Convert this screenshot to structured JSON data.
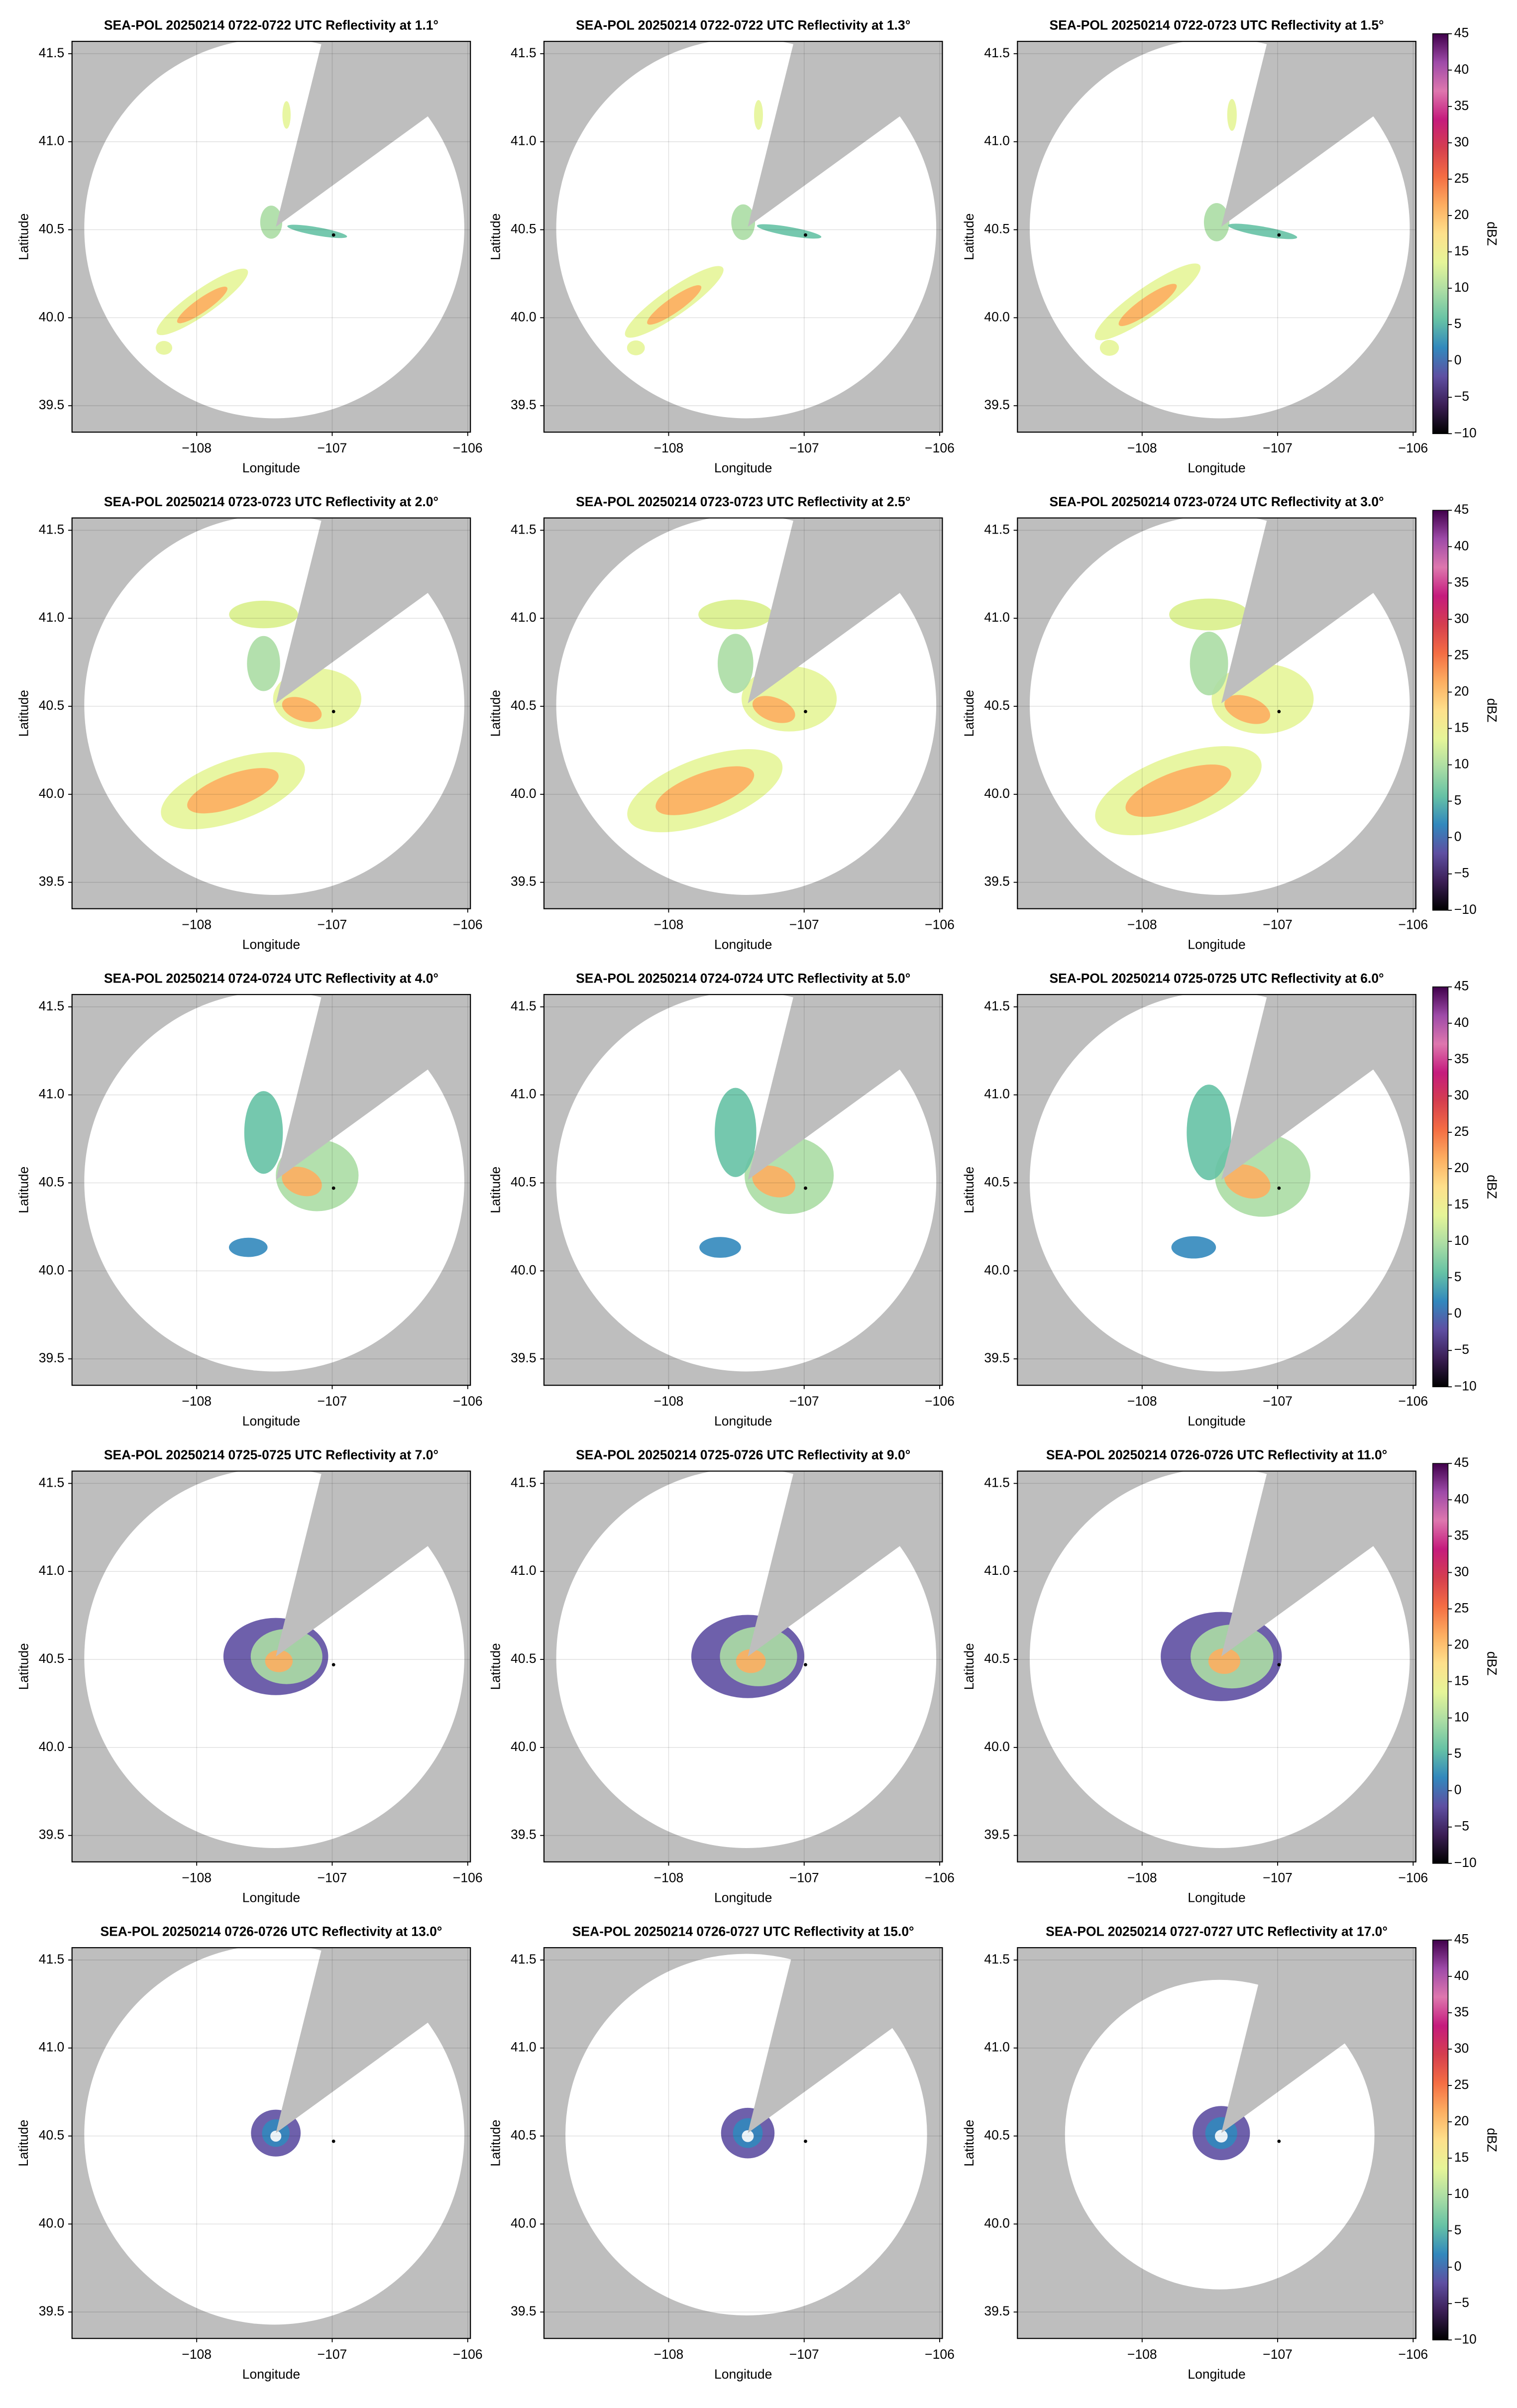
{
  "chart_data": [
    {
      "type": "map",
      "title": "SEA-POL 20250214 0722-0722 UTC Reflectivity at 1.1°",
      "xlabel": "Longitude",
      "ylabel": "Latitude",
      "xlim": [
        -108.92,
        -105.98
      ],
      "ylim": [
        39.35,
        41.57
      ],
      "xticks": [
        {
          "value": -108,
          "label": "−108"
        },
        {
          "value": -107,
          "label": "−107"
        },
        {
          "value": -106,
          "label": "−106"
        }
      ],
      "yticks": [
        39.5,
        {
          "value": 40,
          "label": "40.0"
        },
        40.5,
        {
          "value": 41,
          "label": "41.0"
        },
        41.5
      ],
      "grid": true,
      "x": [
        -106.99
      ],
      "y": [
        40.47
      ]
    },
    {
      "type": "map",
      "title": "SEA-POL 20250214 0722-0722 UTC Reflectivity at 1.3°",
      "xlabel": "Longitude",
      "ylabel": "Latitude",
      "xlim": [
        -108.92,
        -105.98
      ],
      "ylim": [
        39.35,
        41.57
      ],
      "xticks": [
        {
          "value": -108,
          "label": "−108"
        },
        {
          "value": -107,
          "label": "−107"
        },
        {
          "value": -106,
          "label": "−106"
        }
      ],
      "yticks": [
        39.5,
        {
          "value": 40,
          "label": "40.0"
        },
        40.5,
        {
          "value": 41,
          "label": "41.0"
        },
        41.5
      ],
      "grid": true,
      "x": [
        -106.99
      ],
      "y": [
        40.47
      ]
    },
    {
      "type": "map",
      "title": "SEA-POL 20250214 0722-0723 UTC Reflectivity at 1.5°",
      "xlabel": "Longitude",
      "ylabel": "Latitude",
      "xlim": [
        -108.92,
        -105.98
      ],
      "ylim": [
        39.35,
        41.57
      ],
      "xticks": [
        {
          "value": -108,
          "label": "−108"
        },
        {
          "value": -107,
          "label": "−107"
        },
        {
          "value": -106,
          "label": "−106"
        }
      ],
      "yticks": [
        39.5,
        {
          "value": 40,
          "label": "40.0"
        },
        40.5,
        {
          "value": 41,
          "label": "41.0"
        },
        41.5
      ],
      "grid": true,
      "x": [
        -106.99
      ],
      "y": [
        40.47
      ],
      "colorbar": {
        "label": "dBZ",
        "lim": [
          -10,
          45
        ],
        "ticks": [
          {
            "value": -10,
            "label": "−10"
          },
          {
            "value": -5,
            "label": "−5"
          },
          0,
          5,
          10,
          15,
          20,
          25,
          30,
          35,
          40,
          45
        ],
        "colormap": [
          "#000000",
          "#3b1e55",
          "#5e4fa2",
          "#3288bd",
          "#66c2a5",
          "#abdda4",
          "#e6f598",
          "#fee08b",
          "#fdae61",
          "#f46d43",
          "#d53e4f",
          "#c51b7d",
          "#de77ae",
          "#9e4aa8",
          "#40004b"
        ]
      }
    },
    {
      "type": "map",
      "title": "SEA-POL 20250214 0723-0723 UTC Reflectivity at 2.0°",
      "xlabel": "Longitude",
      "ylabel": "Latitude",
      "xlim": [
        -108.92,
        -105.98
      ],
      "ylim": [
        39.35,
        41.57
      ],
      "xticks": [
        {
          "value": -108,
          "label": "−108"
        },
        {
          "value": -107,
          "label": "−107"
        },
        {
          "value": -106,
          "label": "−106"
        }
      ],
      "yticks": [
        39.5,
        {
          "value": 40,
          "label": "40.0"
        },
        40.5,
        {
          "value": 41,
          "label": "41.0"
        },
        41.5
      ],
      "grid": true,
      "x": [
        -106.99
      ],
      "y": [
        40.47
      ]
    },
    {
      "type": "map",
      "title": "SEA-POL 20250214 0723-0723 UTC Reflectivity at 2.5°",
      "xlabel": "Longitude",
      "ylabel": "Latitude",
      "xlim": [
        -108.92,
        -105.98
      ],
      "ylim": [
        39.35,
        41.57
      ],
      "xticks": [
        {
          "value": -108,
          "label": "−108"
        },
        {
          "value": -107,
          "label": "−107"
        },
        {
          "value": -106,
          "label": "−106"
        }
      ],
      "yticks": [
        39.5,
        {
          "value": 40,
          "label": "40.0"
        },
        40.5,
        {
          "value": 41,
          "label": "41.0"
        },
        41.5
      ],
      "grid": true,
      "x": [
        -106.99
      ],
      "y": [
        40.47
      ]
    },
    {
      "type": "map",
      "title": "SEA-POL 20250214 0723-0724 UTC Reflectivity at 3.0°",
      "xlabel": "Longitude",
      "ylabel": "Latitude",
      "xlim": [
        -108.92,
        -105.98
      ],
      "ylim": [
        39.35,
        41.57
      ],
      "xticks": [
        {
          "value": -108,
          "label": "−108"
        },
        {
          "value": -107,
          "label": "−107"
        },
        {
          "value": -106,
          "label": "−106"
        }
      ],
      "yticks": [
        39.5,
        {
          "value": 40,
          "label": "40.0"
        },
        40.5,
        {
          "value": 41,
          "label": "41.0"
        },
        41.5
      ],
      "grid": true,
      "x": [
        -106.99
      ],
      "y": [
        40.47
      ],
      "colorbar": {
        "label": "dBZ",
        "lim": [
          -10,
          45
        ],
        "ticks": [
          {
            "value": -10,
            "label": "−10"
          },
          {
            "value": -5,
            "label": "−5"
          },
          0,
          5,
          10,
          15,
          20,
          25,
          30,
          35,
          40,
          45
        ],
        "colormap": [
          "#000000",
          "#3b1e55",
          "#5e4fa2",
          "#3288bd",
          "#66c2a5",
          "#abdda4",
          "#e6f598",
          "#fee08b",
          "#fdae61",
          "#f46d43",
          "#d53e4f",
          "#c51b7d",
          "#de77ae",
          "#9e4aa8",
          "#40004b"
        ]
      }
    },
    {
      "type": "map",
      "title": "SEA-POL 20250214 0724-0724 UTC Reflectivity at 4.0°",
      "xlabel": "Longitude",
      "ylabel": "Latitude",
      "xlim": [
        -108.92,
        -105.98
      ],
      "ylim": [
        39.35,
        41.57
      ],
      "xticks": [
        {
          "value": -108,
          "label": "−108"
        },
        {
          "value": -107,
          "label": "−107"
        },
        {
          "value": -106,
          "label": "−106"
        }
      ],
      "yticks": [
        39.5,
        {
          "value": 40,
          "label": "40.0"
        },
        40.5,
        {
          "value": 41,
          "label": "41.0"
        },
        41.5
      ],
      "grid": true,
      "x": [
        -106.99
      ],
      "y": [
        40.47
      ]
    },
    {
      "type": "map",
      "title": "SEA-POL 20250214 0724-0724 UTC Reflectivity at 5.0°",
      "xlabel": "Longitude",
      "ylabel": "Latitude",
      "xlim": [
        -108.92,
        -105.98
      ],
      "ylim": [
        39.35,
        41.57
      ],
      "xticks": [
        {
          "value": -108,
          "label": "−108"
        },
        {
          "value": -107,
          "label": "−107"
        },
        {
          "value": -106,
          "label": "−106"
        }
      ],
      "yticks": [
        39.5,
        {
          "value": 40,
          "label": "40.0"
        },
        40.5,
        {
          "value": 41,
          "label": "41.0"
        },
        41.5
      ],
      "grid": true,
      "x": [
        -106.99
      ],
      "y": [
        40.47
      ]
    },
    {
      "type": "map",
      "title": "SEA-POL 20250214 0725-0725 UTC Reflectivity at 6.0°",
      "xlabel": "Longitude",
      "ylabel": "Latitude",
      "xlim": [
        -108.92,
        -105.98
      ],
      "ylim": [
        39.35,
        41.57
      ],
      "xticks": [
        {
          "value": -108,
          "label": "−108"
        },
        {
          "value": -107,
          "label": "−107"
        },
        {
          "value": -106,
          "label": "−106"
        }
      ],
      "yticks": [
        39.5,
        {
          "value": 40,
          "label": "40.0"
        },
        40.5,
        {
          "value": 41,
          "label": "41.0"
        },
        41.5
      ],
      "grid": true,
      "x": [
        -106.99
      ],
      "y": [
        40.47
      ],
      "colorbar": {
        "label": "dBZ",
        "lim": [
          -10,
          45
        ],
        "ticks": [
          {
            "value": -10,
            "label": "−10"
          },
          {
            "value": -5,
            "label": "−5"
          },
          0,
          5,
          10,
          15,
          20,
          25,
          30,
          35,
          40,
          45
        ],
        "colormap": [
          "#000000",
          "#3b1e55",
          "#5e4fa2",
          "#3288bd",
          "#66c2a5",
          "#abdda4",
          "#e6f598",
          "#fee08b",
          "#fdae61",
          "#f46d43",
          "#d53e4f",
          "#c51b7d",
          "#de77ae",
          "#9e4aa8",
          "#40004b"
        ]
      }
    },
    {
      "type": "map",
      "title": "SEA-POL 20250214 0725-0725 UTC Reflectivity at 7.0°",
      "xlabel": "Longitude",
      "ylabel": "Latitude",
      "xlim": [
        -108.92,
        -105.98
      ],
      "ylim": [
        39.35,
        41.57
      ],
      "xticks": [
        {
          "value": -108,
          "label": "−108"
        },
        {
          "value": -107,
          "label": "−107"
        },
        {
          "value": -106,
          "label": "−106"
        }
      ],
      "yticks": [
        39.5,
        {
          "value": 40,
          "label": "40.0"
        },
        40.5,
        {
          "value": 41,
          "label": "41.0"
        },
        41.5
      ],
      "grid": true,
      "x": [
        -106.99
      ],
      "y": [
        40.47
      ]
    },
    {
      "type": "map",
      "title": "SEA-POL 20250214 0725-0726 UTC Reflectivity at 9.0°",
      "xlabel": "Longitude",
      "ylabel": "Latitude",
      "xlim": [
        -108.92,
        -105.98
      ],
      "ylim": [
        39.35,
        41.57
      ],
      "xticks": [
        {
          "value": -108,
          "label": "−108"
        },
        {
          "value": -107,
          "label": "−107"
        },
        {
          "value": -106,
          "label": "−106"
        }
      ],
      "yticks": [
        39.5,
        {
          "value": 40,
          "label": "40.0"
        },
        40.5,
        {
          "value": 41,
          "label": "41.0"
        },
        41.5
      ],
      "grid": true,
      "x": [
        -106.99
      ],
      "y": [
        40.47
      ]
    },
    {
      "type": "map",
      "title": "SEA-POL 20250214 0726-0726 UTC Reflectivity at 11.0°",
      "xlabel": "Longitude",
      "ylabel": "Latitude",
      "xlim": [
        -108.92,
        -105.98
      ],
      "ylim": [
        39.35,
        41.57
      ],
      "xticks": [
        {
          "value": -108,
          "label": "−108"
        },
        {
          "value": -107,
          "label": "−107"
        },
        {
          "value": -106,
          "label": "−106"
        }
      ],
      "yticks": [
        39.5,
        {
          "value": 40,
          "label": "40.0"
        },
        40.5,
        {
          "value": 41,
          "label": "41.0"
        },
        41.5
      ],
      "grid": true,
      "x": [
        -106.99
      ],
      "y": [
        40.47
      ],
      "colorbar": {
        "label": "dBZ",
        "lim": [
          -10,
          45
        ],
        "ticks": [
          {
            "value": -10,
            "label": "−10"
          },
          {
            "value": -5,
            "label": "−5"
          },
          0,
          5,
          10,
          15,
          20,
          25,
          30,
          35,
          40,
          45
        ],
        "colormap": [
          "#000000",
          "#3b1e55",
          "#5e4fa2",
          "#3288bd",
          "#66c2a5",
          "#abdda4",
          "#e6f598",
          "#fee08b",
          "#fdae61",
          "#f46d43",
          "#d53e4f",
          "#c51b7d",
          "#de77ae",
          "#9e4aa8",
          "#40004b"
        ]
      }
    },
    {
      "type": "map",
      "title": "SEA-POL 20250214 0726-0726 UTC Reflectivity at 13.0°",
      "xlabel": "Longitude",
      "ylabel": "Latitude",
      "xlim": [
        -108.92,
        -105.98
      ],
      "ylim": [
        39.35,
        41.57
      ],
      "xticks": [
        {
          "value": -108,
          "label": "−108"
        },
        {
          "value": -107,
          "label": "−107"
        },
        {
          "value": -106,
          "label": "−106"
        }
      ],
      "yticks": [
        39.5,
        {
          "value": 40,
          "label": "40.0"
        },
        40.5,
        {
          "value": 41,
          "label": "41.0"
        },
        41.5
      ],
      "grid": true,
      "x": [
        -106.99
      ],
      "y": [
        40.47
      ]
    },
    {
      "type": "map",
      "title": "SEA-POL 20250214 0726-0727 UTC Reflectivity at 15.0°",
      "xlabel": "Longitude",
      "ylabel": "Latitude",
      "xlim": [
        -108.92,
        -105.98
      ],
      "ylim": [
        39.35,
        41.57
      ],
      "xticks": [
        {
          "value": -108,
          "label": "−108"
        },
        {
          "value": -107,
          "label": "−107"
        },
        {
          "value": -106,
          "label": "−106"
        }
      ],
      "yticks": [
        39.5,
        {
          "value": 40,
          "label": "40.0"
        },
        40.5,
        {
          "value": 41,
          "label": "41.0"
        },
        41.5
      ],
      "grid": true,
      "x": [
        -106.99
      ],
      "y": [
        40.47
      ]
    },
    {
      "type": "map",
      "title": "SEA-POL 20250214 0727-0727 UTC Reflectivity at 17.0°",
      "xlabel": "Longitude",
      "ylabel": "Latitude",
      "xlim": [
        -108.92,
        -105.98
      ],
      "ylim": [
        39.35,
        41.57
      ],
      "xticks": [
        {
          "value": -108,
          "label": "−108"
        },
        {
          "value": -107,
          "label": "−107"
        },
        {
          "value": -106,
          "label": "−106"
        }
      ],
      "yticks": [
        39.5,
        {
          "value": 40,
          "label": "40.0"
        },
        40.5,
        {
          "value": 41,
          "label": "41.0"
        },
        41.5
      ],
      "grid": true,
      "x": [
        -106.99
      ],
      "y": [
        40.47
      ],
      "colorbar": {
        "label": "dBZ",
        "lim": [
          -10,
          45
        ],
        "ticks": [
          {
            "value": -10,
            "label": "−10"
          },
          {
            "value": -5,
            "label": "−5"
          },
          0,
          5,
          10,
          15,
          20,
          25,
          30,
          35,
          40,
          45
        ],
        "colormap": [
          "#000000",
          "#3b1e55",
          "#5e4fa2",
          "#3288bd",
          "#66c2a5",
          "#abdda4",
          "#e6f598",
          "#fee08b",
          "#fdae61",
          "#f46d43",
          "#d53e4f",
          "#c51b7d",
          "#de77ae",
          "#9e4aa8",
          "#40004b"
        ]
      }
    }
  ]
}
